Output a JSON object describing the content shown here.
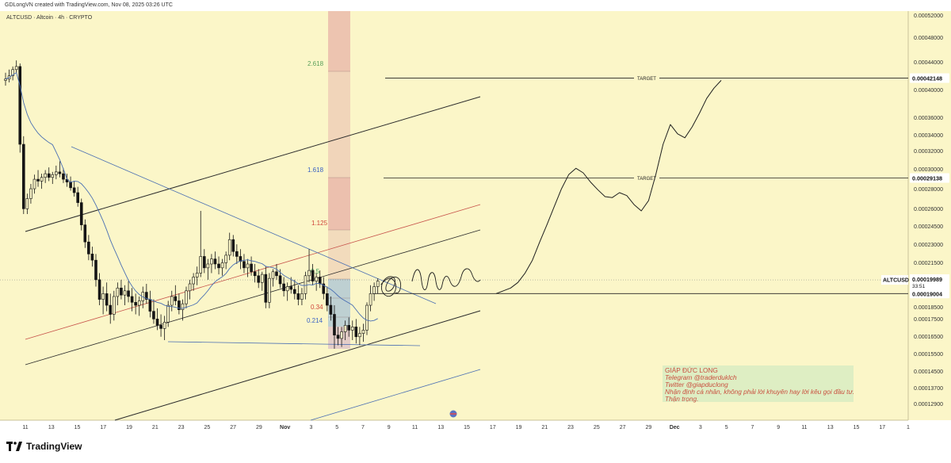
{
  "header": {
    "watermark": "GDLongVN created with TradingView.com, Nov 08, 2025 03:26 UTC"
  },
  "footer": {
    "brand": "TradingView"
  },
  "colors": {
    "background": "#fbf6c8",
    "candle": "#151515",
    "ma_line": "#4a6fb3",
    "channel_upper": "#2a2a2a",
    "channel_mid": "#c7524a",
    "projection": "#1f1f1f",
    "fib_cell_light": "#efd2b8",
    "fib_cell_pink": "#e8b3a8",
    "fib_cell_blue": "#a9c3d6",
    "note_box": "#d8ecc2",
    "note_text": "#c94f3f"
  },
  "chart_data": {
    "type": "candlestick",
    "symbol_label": "ALTCUSD · Altcoin · 4h · CRYPTO",
    "price_scale": {
      "type": "log",
      "ylim": [
        0.000119,
        0.00054
      ],
      "ticks": [
        "0.00052000",
        "0.00048000",
        "0.00044000",
        "0.00040000",
        "0.00036000",
        "0.00034000",
        "0.00032000",
        "0.00030000",
        "0.00028000",
        "0.00026000",
        "0.00024500",
        "0.00023000",
        "0.00021500",
        "0.00018500",
        "0.00017500",
        "0.00016500",
        "0.00015500",
        "0.00014500",
        "0.00013700",
        "0.00012900"
      ]
    },
    "time_axis": {
      "ticks": [
        "11",
        "13",
        "15",
        "17",
        "19",
        "21",
        "23",
        "25",
        "27",
        "29",
        "Nov",
        "3",
        "5",
        "7",
        "9",
        "11",
        "13",
        "15",
        "17",
        "19",
        "21",
        "23",
        "25",
        "27",
        "29",
        "Dec",
        "3",
        "5",
        "7",
        "9",
        "11",
        "13",
        "15",
        "17",
        "1"
      ]
    },
    "price_tags": {
      "current_name": "ALTCUSD",
      "current_price": "0.00019989",
      "countdown": "33:51",
      "line_price": "0.00019004",
      "target1": "0.00029138",
      "target2": "0.00042148"
    },
    "targets": [
      {
        "label": "TARGET",
        "price": 0.00042148
      },
      {
        "label": "TARGET",
        "price": 0.00029138
      }
    ],
    "fib_levels": [
      {
        "label": "2.618",
        "color": "#5aa05a"
      },
      {
        "label": "1.618",
        "color": "#3a62c4"
      },
      {
        "label": "1.125",
        "color": "#d0453a"
      },
      {
        "label": "0.5",
        "color": "#3aa05a"
      },
      {
        "label": "0.34",
        "color": "#d0453a"
      },
      {
        "label": "0.214",
        "color": "#3a62c4"
      }
    ],
    "annotation": {
      "name": "GIÁP ĐỨC LONG",
      "telegram": "Telegram @traderduklch",
      "twitter": "Twitter @giapduclong",
      "disclaimer": "Nhận định cá nhân, không phải lời khuyên hay lời kêu gọi đầu tư.",
      "caution": "Thận trọng."
    },
    "candles": [
      [
        0.000418,
        0.00043,
        0.00041,
        0.00042
      ],
      [
        0.00042,
        0.000435,
        0.000415,
        0.000425
      ],
      [
        0.000425,
        0.00044,
        0.000418,
        0.000435
      ],
      [
        0.000435,
        0.00045,
        0.00043,
        0.00044
      ],
      [
        0.00044,
        0.000445,
        0.00032,
        0.00033
      ],
      [
        0.00033,
        0.00034,
        0.000255,
        0.00026
      ],
      [
        0.00026,
        0.000275,
        0.000255,
        0.00027
      ],
      [
        0.00027,
        0.000285,
        0.000265,
        0.00028
      ],
      [
        0.00028,
        0.000295,
        0.000275,
        0.00029
      ],
      [
        0.00029,
        0.0003,
        0.000282,
        0.000288
      ],
      [
        0.000288,
        0.000296,
        0.00028,
        0.000292
      ],
      [
        0.000292,
        0.0003,
        0.000286,
        0.000296
      ],
      [
        0.000296,
        0.000303,
        0.000288,
        0.000292
      ],
      [
        0.000292,
        0.000298,
        0.000285,
        0.000295
      ],
      [
        0.000295,
        0.000305,
        0.00029,
        0.000298
      ],
      [
        0.000298,
        0.00031,
        0.000292,
        0.000296
      ],
      [
        0.000296,
        0.000302,
        0.000286,
        0.00029
      ],
      [
        0.00029,
        0.000296,
        0.000282,
        0.000287
      ],
      [
        0.000287,
        0.000293,
        0.000278,
        0.000281
      ],
      [
        0.000281,
        0.000288,
        0.000272,
        0.000276
      ],
      [
        0.000276,
        0.000282,
        0.000262,
        0.000266
      ],
      [
        0.000266,
        0.00027,
        0.00024,
        0.000245
      ],
      [
        0.000245,
        0.00025,
        0.000225,
        0.00023
      ],
      [
        0.00023,
        0.000236,
        0.000215,
        0.00022
      ],
      [
        0.00022,
        0.000226,
        0.00021,
        0.000215
      ],
      [
        0.000215,
        0.00022,
        0.000195,
        0.0002
      ],
      [
        0.0002,
        0.000205,
        0.000182,
        0.000186
      ],
      [
        0.000186,
        0.000195,
        0.000176,
        0.00019
      ],
      [
        0.00019,
        0.000198,
        0.000178,
        0.000182
      ],
      [
        0.000182,
        0.00019,
        0.00017,
        0.000176
      ],
      [
        0.000176,
        0.000192,
        0.000172,
        0.000188
      ],
      [
        0.000188,
        0.000198,
        0.000182,
        0.000194
      ],
      [
        0.000194,
        0.0002,
        0.000186,
        0.000189
      ],
      [
        0.000189,
        0.000196,
        0.000182,
        0.000192
      ],
      [
        0.000192,
        0.000199,
        0.000184,
        0.000188
      ],
      [
        0.000188,
        0.000194,
        0.000178,
        0.000184
      ],
      [
        0.000184,
        0.00019,
        0.000176,
        0.000182
      ],
      [
        0.000182,
        0.000188,
        0.000175,
        0.000185
      ],
      [
        0.000185,
        0.000195,
        0.00018,
        0.000191
      ],
      [
        0.000191,
        0.000197,
        0.000183,
        0.000186
      ],
      [
        0.000186,
        0.000192,
        0.000174,
        0.000178
      ],
      [
        0.000178,
        0.000186,
        0.00017,
        0.000173
      ],
      [
        0.000173,
        0.00018,
        0.000166,
        0.000169
      ],
      [
        0.000169,
        0.000176,
        0.000162,
        0.000167
      ],
      [
        0.000167,
        0.000175,
        0.00016,
        0.000171
      ],
      [
        0.000171,
        0.000185,
        0.000168,
        0.000182
      ],
      [
        0.000182,
        0.000192,
        0.000178,
        0.000188
      ],
      [
        0.000188,
        0.000196,
        0.000182,
        0.000185
      ],
      [
        0.000185,
        0.00019,
        0.000176,
        0.000179
      ],
      [
        0.000179,
        0.000186,
        0.000172,
        0.000183
      ],
      [
        0.000183,
        0.000195,
        0.00018,
        0.000192
      ],
      [
        0.000192,
        0.0002,
        0.000186,
        0.000197
      ],
      [
        0.000197,
        0.000205,
        0.000192,
        0.000202
      ],
      [
        0.000202,
        0.00021,
        0.000196,
        0.000205
      ],
      [
        0.000205,
        0.000258,
        0.000202,
        0.000218
      ],
      [
        0.000218,
        0.000224,
        0.000205,
        0.000209
      ],
      [
        0.000209,
        0.000216,
        0.0002,
        0.000212
      ],
      [
        0.000212,
        0.00022,
        0.000205,
        0.000216
      ],
      [
        0.000216,
        0.000222,
        0.000208,
        0.000212
      ],
      [
        0.000212,
        0.000218,
        0.000204,
        0.000209
      ],
      [
        0.000209,
        0.000216,
        0.000203,
        0.000213
      ],
      [
        0.000213,
        0.000222,
        0.000208,
        0.000219
      ],
      [
        0.000219,
        0.000238,
        0.000215,
        0.000232
      ],
      [
        0.000232,
        0.000236,
        0.000218,
        0.000222
      ],
      [
        0.000222,
        0.000228,
        0.000212,
        0.000218
      ],
      [
        0.000218,
        0.000224,
        0.000208,
        0.000214
      ],
      [
        0.000214,
        0.00022,
        0.000205,
        0.000209
      ],
      [
        0.000209,
        0.000216,
        0.000202,
        0.000212
      ],
      [
        0.000212,
        0.000218,
        0.000203,
        0.000206
      ],
      [
        0.000206,
        0.000212,
        0.000198,
        0.000203
      ],
      [
        0.000203,
        0.000208,
        0.000194,
        0.000198
      ],
      [
        0.000198,
        0.000206,
        0.000192,
        0.000204
      ],
      [
        0.000204,
        0.00021,
        0.00018,
        0.000184
      ],
      [
        0.000184,
        0.000205,
        0.00018,
        0.000201
      ],
      [
        0.000201,
        0.000208,
        0.000195,
        0.000206
      ],
      [
        0.000206,
        0.000212,
        0.0002,
        0.000203
      ],
      [
        0.000203,
        0.000208,
        0.000194,
        0.000197
      ],
      [
        0.000197,
        0.000202,
        0.000188,
        0.000192
      ],
      [
        0.000192,
        0.000198,
        0.000185,
        0.000195
      ],
      [
        0.000195,
        0.000202,
        0.00019,
        0.000193
      ],
      [
        0.000193,
        0.0002,
        0.000186,
        0.00019
      ],
      [
        0.00019,
        0.000196,
        0.000182,
        0.000186
      ],
      [
        0.000186,
        0.000194,
        0.000182,
        0.00019
      ],
      [
        0.00019,
        0.000206,
        0.000186,
        0.000203
      ],
      [
        0.000203,
        0.000224,
        0.000198,
        0.000207
      ],
      [
        0.000207,
        0.000212,
        0.000196,
        0.000199
      ],
      [
        0.000199,
        0.000205,
        0.000192,
        0.000202
      ],
      [
        0.000202,
        0.000207,
        0.000194,
        0.000197
      ],
      [
        0.000197,
        0.000202,
        0.000186,
        0.00019
      ],
      [
        0.00019,
        0.000195,
        0.000178,
        0.000182
      ],
      [
        0.000182,
        0.000188,
        0.000172,
        0.000176
      ],
      [
        0.000176,
        0.000182,
        0.000155,
        0.000163
      ],
      [
        0.000163,
        0.000168,
        0.000157,
        0.000161
      ],
      [
        0.000161,
        0.000168,
        0.000156,
        0.000165
      ],
      [
        0.000165,
        0.000172,
        0.00016,
        0.000169
      ],
      [
        0.000169,
        0.000174,
        0.000162,
        0.000166
      ],
      [
        0.000166,
        0.000172,
        0.00016,
        0.000168
      ],
      [
        0.000168,
        0.000173,
        0.000158,
        0.000162
      ],
      [
        0.000162,
        0.000168,
        0.000157,
        0.000164
      ],
      [
        0.000164,
        0.00017,
        0.000159,
        0.000166
      ],
      [
        0.000166,
        0.000184,
        0.000163,
        0.000182
      ],
      [
        0.000182,
        0.000196,
        0.000178,
        0.00019
      ],
      [
        0.00019,
        0.000198,
        0.000185,
        0.000195
      ],
      [
        0.000195,
        0.000201,
        0.00019,
        0.000199
      ]
    ],
    "projection_path": [
      [
        0.0,
        0.00019
      ],
      [
        0.4,
        0.000192
      ],
      [
        0.8,
        0.000194
      ],
      [
        1.2,
        0.000198
      ],
      [
        1.6,
        0.000205
      ],
      [
        2.0,
        0.000215
      ],
      [
        2.4,
        0.00023
      ],
      [
        2.8,
        0.000245
      ],
      [
        3.2,
        0.000262
      ],
      [
        3.6,
        0.00028
      ],
      [
        4.0,
        0.000295
      ],
      [
        4.4,
        0.000302
      ],
      [
        4.8,
        0.000297
      ],
      [
        5.2,
        0.000287
      ],
      [
        5.6,
        0.000279
      ],
      [
        6.0,
        0.000272
      ],
      [
        6.4,
        0.000271
      ],
      [
        6.8,
        0.000276
      ],
      [
        7.2,
        0.000273
      ],
      [
        7.6,
        0.000264
      ],
      [
        8.0,
        0.000258
      ],
      [
        8.4,
        0.000268
      ],
      [
        8.8,
        0.000295
      ],
      [
        9.2,
        0.00033
      ],
      [
        9.6,
        0.000355
      ],
      [
        10.0,
        0.000343
      ],
      [
        10.4,
        0.000338
      ],
      [
        10.8,
        0.000352
      ],
      [
        11.2,
        0.00037
      ],
      [
        11.6,
        0.000391
      ],
      [
        12.0,
        0.000406
      ],
      [
        12.4,
        0.000418
      ]
    ]
  }
}
